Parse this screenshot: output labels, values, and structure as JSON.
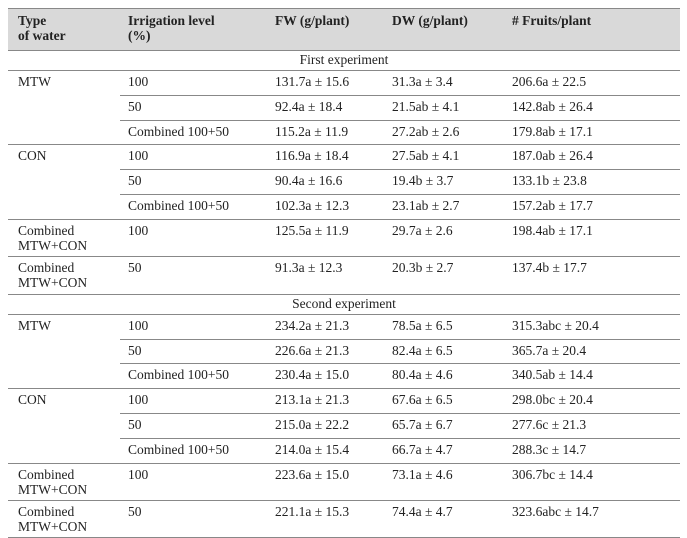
{
  "table": {
    "header": [
      [
        "Type",
        "of water"
      ],
      [
        "Irrigation level",
        "(%)"
      ],
      [
        "FW (g/plant)"
      ],
      [
        "DW (g/plant)"
      ],
      [
        "# Fruits/plant"
      ]
    ],
    "sections": [
      {
        "title": "First experiment",
        "groups": [
          {
            "type": [
              "MTW"
            ],
            "rows": [
              [
                "100",
                "131.7a ± 15.6",
                "31.3a ± 3.4",
                "206.6a ± 22.5"
              ],
              [
                "50",
                "92.4a ± 18.4",
                "21.5ab ± 4.1",
                "142.8ab ± 26.4"
              ],
              [
                "Combined 100+50",
                "115.2a ± 11.9",
                "27.2ab ± 2.6",
                "179.8ab ± 17.1"
              ]
            ]
          },
          {
            "type": [
              "CON"
            ],
            "rows": [
              [
                "100",
                "116.9a ± 18.4",
                "27.5ab ± 4.1",
                "187.0ab ± 26.4"
              ],
              [
                "50",
                "90.4a ± 16.6",
                "19.4b ± 3.7",
                "133.1b ± 23.8"
              ],
              [
                "Combined 100+50",
                "102.3a ± 12.3",
                "23.1ab ± 2.7",
                "157.2ab ± 17.7"
              ]
            ]
          },
          {
            "type": [
              "Combined",
              "MTW+CON"
            ],
            "rows": [
              [
                "100",
                "125.5a ± 11.9",
                "29.7a ± 2.6",
                "198.4ab ± 17.1"
              ]
            ]
          },
          {
            "type": [
              "Combined",
              "MTW+CON"
            ],
            "rows": [
              [
                "50",
                "91.3a ± 12.3",
                "20.3b ± 2.7",
                "137.4b ± 17.7"
              ]
            ]
          }
        ]
      },
      {
        "title": "Second experiment",
        "groups": [
          {
            "type": [
              "MTW"
            ],
            "rows": [
              [
                "100",
                "234.2a ± 21.3",
                "78.5a ± 6.5",
                "315.3abc ± 20.4"
              ],
              [
                "50",
                "226.6a ± 21.3",
                "82.4a ± 6.5",
                "365.7a ± 20.4"
              ],
              [
                "Combined 100+50",
                "230.4a ± 15.0",
                "80.4a ± 4.6",
                "340.5ab ± 14.4"
              ]
            ]
          },
          {
            "type": [
              "CON"
            ],
            "rows": [
              [
                "100",
                "213.1a ± 21.3",
                "67.6a ± 6.5",
                "298.0bc ± 20.4"
              ],
              [
                "50",
                "215.0a ± 22.2",
                "65.7a ± 6.7",
                "277.6c ± 21.3"
              ],
              [
                "Combined 100+50",
                "214.0a ± 15.4",
                "66.7a ± 4.7",
                "288.3c ± 14.7"
              ]
            ]
          },
          {
            "type": [
              "Combined",
              "MTW+CON"
            ],
            "rows": [
              [
                "100",
                "223.6a ± 15.0",
                "73.1a ± 4.6",
                "306.7bc ± 14.4"
              ]
            ]
          },
          {
            "type": [
              "Combined",
              "MTW+CON"
            ],
            "rows": [
              [
                "50",
                "221.1a ± 15.3",
                "74.4a ± 4.7",
                "323.6abc ± 14.7"
              ]
            ]
          }
        ]
      }
    ]
  }
}
